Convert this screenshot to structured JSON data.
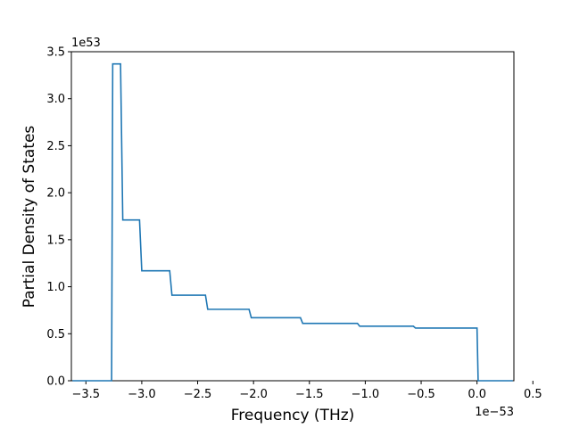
{
  "chart_data": {
    "type": "line",
    "title": "",
    "xlabel": "Frequency (THz)",
    "ylabel": "Partial Density of States",
    "x_offset_label": "1e−53",
    "y_offset_label": "1e53",
    "xlim": [
      -3.63,
      0.33
    ],
    "ylim": [
      0,
      3.5
    ],
    "x_ticks": [
      {
        "value": -3.5,
        "label": "−3.5"
      },
      {
        "value": -3.0,
        "label": "−3.0"
      },
      {
        "value": -2.5,
        "label": "−2.5"
      },
      {
        "value": -2.0,
        "label": "−2.0"
      },
      {
        "value": -1.5,
        "label": "−1.5"
      },
      {
        "value": -1.0,
        "label": "−1.0"
      },
      {
        "value": -0.5,
        "label": "−0.5"
      },
      {
        "value": 0.0,
        "label": "0.0"
      },
      {
        "value": 0.5,
        "label": "0.5"
      }
    ],
    "y_ticks": [
      {
        "value": 0.0,
        "label": "0.0"
      },
      {
        "value": 0.5,
        "label": "0.5"
      },
      {
        "value": 1.0,
        "label": "1.0"
      },
      {
        "value": 1.5,
        "label": "1.5"
      },
      {
        "value": 2.0,
        "label": "2.0"
      },
      {
        "value": 2.5,
        "label": "2.5"
      },
      {
        "value": 3.0,
        "label": "3.0"
      },
      {
        "value": 3.5,
        "label": "3.5"
      }
    ],
    "grid": false,
    "series": [
      {
        "color": "#1f77b4",
        "x": [
          -3.62,
          -3.27,
          -3.26,
          -3.19,
          -3.17,
          -3.02,
          -3.0,
          -2.75,
          -2.73,
          -2.43,
          -2.41,
          -2.04,
          -2.02,
          -1.58,
          -1.56,
          -1.07,
          -1.05,
          -0.57,
          -0.55,
          0.0,
          0.01,
          0.32
        ],
        "y": [
          0.0,
          0.0,
          3.37,
          3.37,
          1.71,
          1.71,
          1.17,
          1.17,
          0.91,
          0.91,
          0.76,
          0.76,
          0.67,
          0.67,
          0.61,
          0.61,
          0.58,
          0.58,
          0.56,
          0.56,
          0.0,
          0.0
        ]
      }
    ]
  }
}
